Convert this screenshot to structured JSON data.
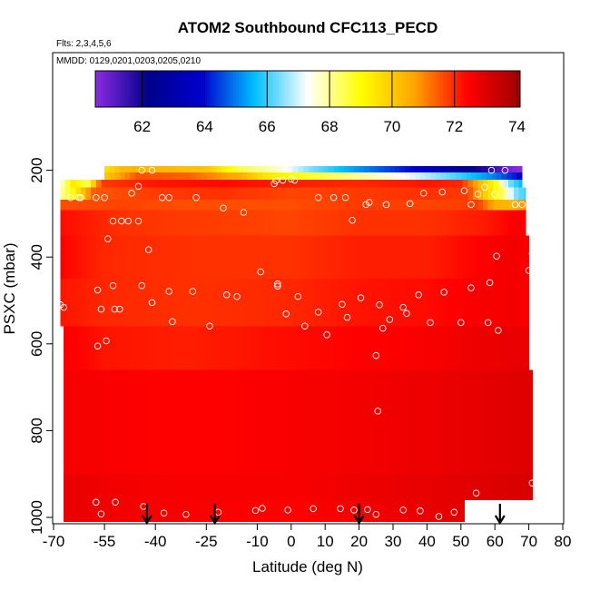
{
  "chart_data": {
    "type": "heatmap",
    "title": "ATOM2 Southbound CFC113_PECD",
    "flights_note": "Flts: 2,3,4,5,6",
    "dates_note": "MMDD: 0129,0201,0203,0205,0210",
    "xlabel": "Latitude (deg N)",
    "ylabel": "PSXC (mbar)",
    "xlim": [
      -70,
      80
    ],
    "ylim": [
      1000,
      0
    ],
    "x_ticks": [
      -70,
      -55,
      -40,
      -25,
      -10,
      0,
      10,
      20,
      30,
      40,
      50,
      60,
      70,
      80
    ],
    "y_ticks": [
      200,
      400,
      600,
      800,
      1000
    ],
    "colorbar": {
      "range": [
        60.5,
        74.1
      ],
      "ticks": [
        62,
        64,
        66,
        68,
        70,
        72,
        74
      ],
      "colors": [
        "#8a2be2",
        "#00008b",
        "#0000cd",
        "#00bfff",
        "#ffffff",
        "#ffff00",
        "#ffa500",
        "#ff0000",
        "#a00000"
      ]
    },
    "field_rows": [
      {
        "p": [
          190,
          205
        ],
        "lat": [
          -55,
          68
        ],
        "stops": [
          [
            -55,
            69.5
          ],
          [
            -50,
            70.3
          ],
          [
            -40,
            70.4
          ],
          [
            -25,
            70.1
          ],
          [
            -15,
            68.5
          ],
          [
            -5,
            67.8
          ],
          [
            5,
            66.5
          ],
          [
            15,
            65.6
          ],
          [
            25,
            64.8
          ],
          [
            35,
            64.0
          ],
          [
            45,
            63.0
          ],
          [
            55,
            62.0
          ],
          [
            60,
            61.5
          ],
          [
            64,
            60.8
          ],
          [
            68,
            60.5
          ]
        ]
      },
      {
        "p": [
          205,
          222
        ],
        "lat": [
          -55,
          68
        ],
        "stops": [
          [
            -55,
            70.0
          ],
          [
            -45,
            71.6
          ],
          [
            -30,
            71.4
          ],
          [
            -15,
            70.5
          ],
          [
            -8,
            69.5
          ],
          [
            0,
            69.0
          ],
          [
            10,
            68.5
          ],
          [
            20,
            68.0
          ],
          [
            30,
            67.5
          ],
          [
            40,
            66.8
          ],
          [
            50,
            66.0
          ],
          [
            60,
            65.0
          ],
          [
            68,
            63.8
          ]
        ]
      },
      {
        "p": [
          222,
          240
        ],
        "lat": [
          -68,
          68
        ],
        "stops": [
          [
            -68,
            67.4
          ],
          [
            -64,
            69.5
          ],
          [
            -60,
            68.3
          ],
          [
            -56,
            71.8
          ],
          [
            -40,
            72.2
          ],
          [
            -20,
            72.3
          ],
          [
            0,
            72.1
          ],
          [
            20,
            72.0
          ],
          [
            40,
            72.2
          ],
          [
            50,
            72.0
          ],
          [
            55,
            70.5
          ],
          [
            60,
            69.0
          ],
          [
            64,
            66.5
          ],
          [
            68,
            65.5
          ]
        ]
      },
      {
        "p": [
          240,
          268
        ],
        "lat": [
          -68,
          69
        ],
        "stops": [
          [
            -68,
            67.8
          ],
          [
            -63,
            69.5
          ],
          [
            -58,
            71.5
          ],
          [
            -40,
            71.8
          ],
          [
            -20,
            71.9
          ],
          [
            0,
            71.7
          ],
          [
            20,
            71.8
          ],
          [
            40,
            71.9
          ],
          [
            52,
            71.8
          ],
          [
            57,
            70.0
          ],
          [
            62,
            68.5
          ],
          [
            66,
            66.5
          ],
          [
            69,
            66.0
          ]
        ]
      },
      {
        "p": [
          268,
          292
        ],
        "lat": [
          -68,
          69
        ],
        "stops": [
          [
            -68,
            71.6
          ],
          [
            -50,
            71.7
          ],
          [
            -30,
            71.6
          ],
          [
            0,
            71.6
          ],
          [
            20,
            71.8
          ],
          [
            40,
            71.7
          ],
          [
            55,
            71.8
          ],
          [
            60,
            70.5
          ],
          [
            65,
            70.3
          ],
          [
            69,
            71.0
          ]
        ]
      },
      {
        "p": [
          292,
          350
        ],
        "lat": [
          -68,
          69
        ],
        "stops": [
          [
            -68,
            72.3
          ],
          [
            -50,
            71.9
          ],
          [
            -30,
            71.8
          ],
          [
            0,
            71.7
          ],
          [
            20,
            71.9
          ],
          [
            40,
            71.9
          ],
          [
            55,
            72.1
          ],
          [
            62,
            72.3
          ],
          [
            69,
            72.6
          ]
        ]
      },
      {
        "p": [
          350,
          450
        ],
        "lat": [
          -68,
          70
        ],
        "stops": [
          [
            -68,
            72.4
          ],
          [
            -55,
            72.0
          ],
          [
            -30,
            71.9
          ],
          [
            0,
            71.9
          ],
          [
            20,
            72.1
          ],
          [
            40,
            72.1
          ],
          [
            55,
            72.4
          ],
          [
            65,
            72.6
          ],
          [
            70,
            72.5
          ]
        ]
      },
      {
        "p": [
          450,
          560
        ],
        "lat": [
          -68,
          70
        ],
        "stops": [
          [
            -68,
            72.2
          ],
          [
            -55,
            72.0
          ],
          [
            -30,
            71.9
          ],
          [
            0,
            72.0
          ],
          [
            20,
            72.2
          ],
          [
            40,
            72.3
          ],
          [
            55,
            72.5
          ],
          [
            65,
            72.6
          ],
          [
            70,
            72.5
          ]
        ]
      },
      {
        "p": [
          560,
          660
        ],
        "lat": [
          -67,
          70
        ],
        "stops": [
          [
            -67,
            72.5
          ],
          [
            -55,
            72.2
          ],
          [
            -30,
            72.1
          ],
          [
            0,
            72.3
          ],
          [
            20,
            72.4
          ],
          [
            40,
            72.5
          ],
          [
            55,
            72.7
          ],
          [
            70,
            72.8
          ]
        ]
      },
      {
        "p": [
          660,
          900
        ],
        "lat": [
          -67,
          71
        ],
        "stops": [
          [
            -67,
            72.6
          ],
          [
            -55,
            72.5
          ],
          [
            -30,
            72.4
          ],
          [
            0,
            72.5
          ],
          [
            20,
            72.6
          ],
          [
            40,
            72.7
          ],
          [
            60,
            72.9
          ],
          [
            71,
            73.0
          ]
        ]
      },
      {
        "p": [
          900,
          960
        ],
        "lat": [
          -67,
          71
        ],
        "stops": [
          [
            -67,
            72.8
          ],
          [
            -50,
            72.6
          ],
          [
            -30,
            72.5
          ],
          [
            0,
            72.5
          ],
          [
            20,
            72.7
          ],
          [
            40,
            72.8
          ],
          [
            60,
            73.0
          ],
          [
            71,
            73.1
          ]
        ]
      },
      {
        "p": [
          960,
          1010
        ],
        "lat": [
          -67,
          51
        ],
        "stops": [
          [
            -67,
            72.8
          ],
          [
            -50,
            72.6
          ],
          [
            -30,
            72.5
          ],
          [
            0,
            72.4
          ],
          [
            20,
            72.6
          ],
          [
            40,
            72.8
          ],
          [
            51,
            72.9
          ]
        ]
      }
    ],
    "observation_points": [
      [
        -68.5,
        965
      ],
      [
        -57.5,
        965
      ],
      [
        -51.8,
        965
      ],
      [
        -56,
        992
      ],
      [
        -43.5,
        975
      ],
      [
        -37.5,
        990
      ],
      [
        -31,
        993
      ],
      [
        -21.5,
        988
      ],
      [
        -10.5,
        984
      ],
      [
        -8.5,
        979
      ],
      [
        -1,
        983
      ],
      [
        6.5,
        980
      ],
      [
        14.5,
        980
      ],
      [
        18.5,
        983
      ],
      [
        22.5,
        982
      ],
      [
        25,
        993
      ],
      [
        33,
        983
      ],
      [
        38,
        985
      ],
      [
        43.5,
        998
      ],
      [
        48,
        988
      ],
      [
        54.5,
        944
      ],
      [
        71,
        921
      ],
      [
        -68,
        510
      ],
      [
        -67,
        516
      ],
      [
        -57,
        476
      ],
      [
        -56,
        520
      ],
      [
        -54.5,
        593
      ],
      [
        -52.5,
        466
      ],
      [
        -52,
        520
      ],
      [
        -50.5,
        520
      ],
      [
        -57,
        605
      ],
      [
        -44,
        466
      ],
      [
        -41,
        505
      ],
      [
        -36,
        479
      ],
      [
        -35,
        549
      ],
      [
        -29,
        479
      ],
      [
        -24,
        559
      ],
      [
        -19,
        487
      ],
      [
        -16,
        491
      ],
      [
        -9,
        434
      ],
      [
        -4,
        462
      ],
      [
        -4,
        467
      ],
      [
        -1.5,
        531
      ],
      [
        2,
        491
      ],
      [
        4,
        559
      ],
      [
        8,
        527
      ],
      [
        10.5,
        579
      ],
      [
        15,
        509
      ],
      [
        16.5,
        539
      ],
      [
        20.5,
        494
      ],
      [
        26,
        510
      ],
      [
        27,
        564
      ],
      [
        29,
        544
      ],
      [
        33,
        516
      ],
      [
        34,
        530
      ],
      [
        37.5,
        487
      ],
      [
        41,
        551
      ],
      [
        45,
        481
      ],
      [
        50,
        551
      ],
      [
        53,
        471
      ],
      [
        58,
        551
      ],
      [
        58.5,
        459
      ],
      [
        61,
        569
      ],
      [
        70,
        431
      ],
      [
        -42,
        383
      ],
      [
        -54,
        358
      ],
      [
        -52.5,
        317
      ],
      [
        -50,
        317
      ],
      [
        -48,
        317
      ],
      [
        -45,
        317
      ],
      [
        -62,
        263
      ],
      [
        -65,
        263
      ],
      [
        -62.5,
        263
      ],
      [
        -57.5,
        263
      ],
      [
        -55,
        263
      ],
      [
        -47,
        253
      ],
      [
        -38,
        263
      ],
      [
        -36,
        263
      ],
      [
        -28,
        263
      ],
      [
        -20,
        287
      ],
      [
        -14,
        297
      ],
      [
        -5,
        231
      ],
      [
        -4.5,
        224
      ],
      [
        -2.5,
        223
      ],
      [
        0,
        220
      ],
      [
        1,
        223
      ],
      [
        8,
        263
      ],
      [
        12.5,
        263
      ],
      [
        16,
        263
      ],
      [
        18,
        315
      ],
      [
        22,
        279
      ],
      [
        23,
        274
      ],
      [
        28,
        279
      ],
      [
        35,
        277
      ],
      [
        39,
        253
      ],
      [
        44.5,
        250
      ],
      [
        53,
        279
      ],
      [
        57,
        239
      ],
      [
        60,
        255
      ],
      [
        66,
        279
      ],
      [
        68,
        279
      ],
      [
        -45,
        237
      ],
      [
        -44,
        200
      ],
      [
        -41,
        200
      ],
      [
        59,
        200
      ],
      [
        63,
        200
      ],
      [
        55,
        255
      ],
      [
        60.5,
        398
      ],
      [
        71,
        392
      ],
      [
        25,
        627
      ],
      [
        25.5,
        755
      ],
      [
        51,
        247
      ]
    ],
    "arrows_lat": [
      -42.5,
      -22.5,
      20,
      61.5
    ]
  }
}
